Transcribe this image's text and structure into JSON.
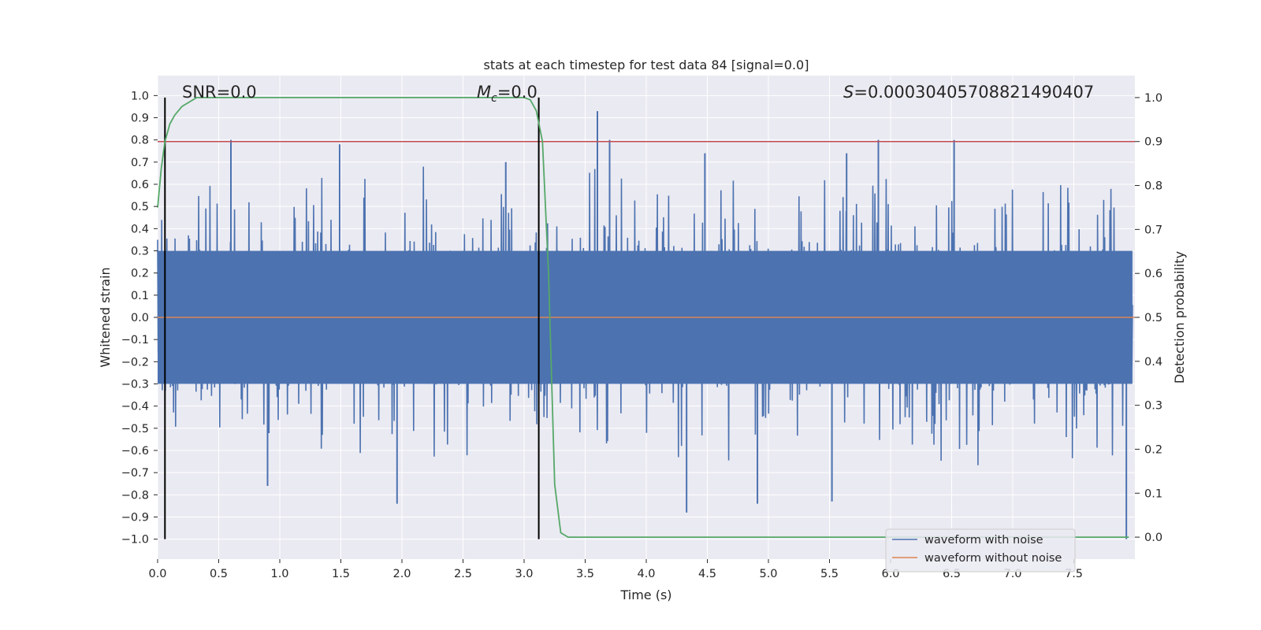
{
  "chart_data": {
    "type": "line",
    "title": "stats at each timestep for test data 84 [signal=0.0]",
    "xlabel": "Time (s)",
    "ylabel": "Whitened strain",
    "y2label": "Detection probability",
    "xlim": [
      0.0,
      8.0
    ],
    "ylim": [
      -1.09,
      1.09
    ],
    "y2lim": [
      -0.05,
      1.05
    ],
    "xticks": [
      "0.0",
      "0.5",
      "1.0",
      "1.5",
      "2.0",
      "2.5",
      "3.0",
      "3.5",
      "4.0",
      "4.5",
      "5.0",
      "5.5",
      "6.0",
      "6.5",
      "7.0",
      "7.5"
    ],
    "yticks": [
      "1.0",
      "0.9",
      "0.8",
      "0.7",
      "0.6",
      "0.5",
      "0.4",
      "0.3",
      "0.2",
      "0.1",
      "0.0",
      "-0.1",
      "-0.2",
      "-0.3",
      "-0.4",
      "-0.5",
      "-0.6",
      "-0.7",
      "-0.8",
      "-0.9",
      "-1.0"
    ],
    "y2ticks": [
      "1.0",
      "0.9",
      "0.8",
      "0.7",
      "0.6",
      "0.5",
      "0.4",
      "0.3",
      "0.2",
      "0.1",
      "0.0"
    ],
    "grid": true,
    "legend_position": "bottom-right",
    "series": [
      {
        "name": "waveform with noise",
        "axis": "left",
        "color": "#4c72b0",
        "noise_band": [
          -0.36,
          0.38
        ],
        "spikes": [
          {
            "x": 0.6,
            "y": 0.8
          },
          {
            "x": 1.49,
            "y": 0.78
          },
          {
            "x": 3.6,
            "y": 0.93
          },
          {
            "x": 5.9,
            "y": 0.8
          },
          {
            "x": 6.52,
            "y": 0.8
          },
          {
            "x": 4.48,
            "y": 0.74
          },
          {
            "x": 5.64,
            "y": 0.74
          },
          {
            "x": 1.96,
            "y": -0.84
          },
          {
            "x": 4.33,
            "y": -0.88
          },
          {
            "x": 4.91,
            "y": -0.84
          },
          {
            "x": 5.52,
            "y": -0.83
          },
          {
            "x": 7.93,
            "y": -1.0
          },
          {
            "x": 2.85,
            "y": 0.7
          },
          {
            "x": 0.9,
            "y": -0.76
          },
          {
            "x": 3.7,
            "y": 0.8
          }
        ]
      },
      {
        "name": "waveform without noise",
        "axis": "left",
        "color": "#dd8452",
        "x": [
          0.0,
          8.0
        ],
        "y": [
          0.0,
          0.0
        ]
      },
      {
        "name": "",
        "axis": "right",
        "color": "#55a868",
        "x": [
          0.0,
          0.03,
          0.06,
          0.1,
          0.14,
          0.2,
          0.26,
          0.32,
          0.4,
          0.5,
          1.0,
          2.0,
          2.9,
          3.0,
          3.05,
          3.1,
          3.15,
          3.2,
          3.25,
          3.3,
          3.36,
          3.45,
          4.0,
          5.0,
          6.0,
          7.0,
          7.95
        ],
        "y": [
          0.75,
          0.84,
          0.9,
          0.94,
          0.96,
          0.98,
          0.99,
          1.0,
          1.0,
          1.0,
          1.0,
          1.0,
          1.0,
          1.0,
          0.995,
          0.97,
          0.9,
          0.6,
          0.12,
          0.01,
          0.0,
          0.0,
          0.0,
          0.0,
          0.0,
          0.0,
          0.0
        ]
      }
    ],
    "threshold": {
      "axis": "right",
      "y": 0.9,
      "color": "#c44e52"
    },
    "vlines": [
      {
        "x": 0.06,
        "y": [
          -1.0,
          0.93
        ],
        "color": "#000000"
      },
      {
        "x": 3.12,
        "y": [
          -1.0,
          0.93
        ],
        "color": "#000000"
      }
    ],
    "annotations": [
      {
        "text": "SNR=0.0",
        "x": 0.19,
        "y": 1.0
      },
      {
        "text": "=0.0",
        "prefix": "M",
        "sub": "c",
        "x": 2.62,
        "y": 1.0
      },
      {
        "text": "=0.00030405708821490407",
        "prefix": "S",
        "x": 5.6,
        "y": 1.0
      }
    ]
  }
}
